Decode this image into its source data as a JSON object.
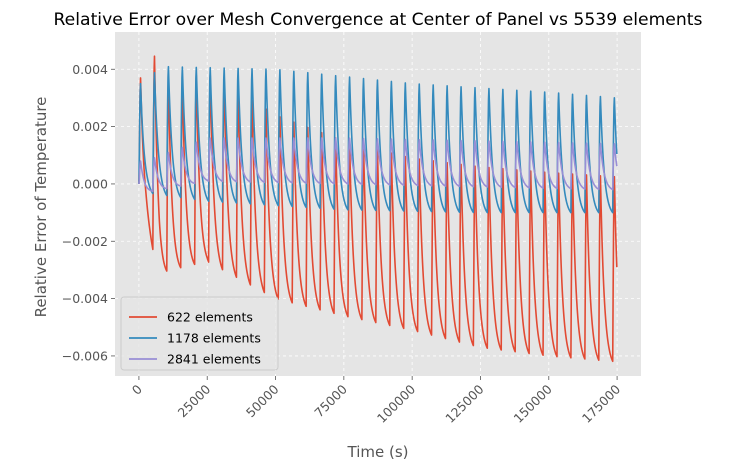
{
  "chart_data": {
    "type": "line",
    "title": "Relative Error over Mesh Convergence at Center of Panel vs 5539 elements",
    "xlabel": "Time (s)",
    "ylabel": "Relative Error of Temperature",
    "xlim": [
      -8750,
      183750
    ],
    "ylim": [
      -0.0067,
      0.0053
    ],
    "xticks": [
      0,
      25000,
      50000,
      75000,
      100000,
      125000,
      150000,
      175000
    ],
    "xtick_labels": [
      "0",
      "25000",
      "50000",
      "75000",
      "100000",
      "125000",
      "150000",
      "175000"
    ],
    "yticks": [
      -0.006,
      -0.004,
      -0.002,
      0.0,
      0.002,
      0.004
    ],
    "ytick_labels": [
      "−0.006",
      "−0.004",
      "−0.002",
      "0.000",
      "0.002",
      "0.004"
    ],
    "xtick_rotation_deg": 45,
    "grid": true,
    "legend_position": "lower-left",
    "colors": {
      "plot_background": "#e5e5e5",
      "grid": "#ffffff",
      "axis_text": "#555555",
      "title": "#000000"
    },
    "x_end": 175000,
    "series": [
      {
        "name": "622 elements",
        "color": "#e24a33",
        "cycle_period": 5100,
        "max_points": [
          [
            2500,
            0.0037
          ],
          [
            5000,
            0.0046
          ],
          [
            10000,
            0.0036
          ],
          [
            15000,
            0.0035
          ],
          [
            20000,
            0.0038
          ],
          [
            30000,
            0.0038
          ],
          [
            40000,
            0.003
          ],
          [
            50000,
            0.0024
          ],
          [
            75000,
            0.0015
          ],
          [
            100000,
            0.0009
          ],
          [
            125000,
            0.0006
          ],
          [
            150000,
            0.0004
          ],
          [
            175000,
            0.00025
          ]
        ],
        "min_points": [
          [
            2500,
            -0.0014
          ],
          [
            7500,
            -0.0031
          ],
          [
            25000,
            -0.0027
          ],
          [
            50000,
            -0.004
          ],
          [
            75000,
            -0.0046
          ],
          [
            100000,
            -0.0051
          ],
          [
            125000,
            -0.0057
          ],
          [
            150000,
            -0.006
          ],
          [
            175000,
            -0.0062
          ]
        ]
      },
      {
        "name": "1178 elements",
        "color": "#348abd",
        "cycle_period": 5100,
        "max_points": [
          [
            2500,
            0.0035
          ],
          [
            7500,
            0.0041
          ],
          [
            50000,
            0.004
          ],
          [
            100000,
            0.0035
          ],
          [
            150000,
            0.0032
          ],
          [
            175000,
            0.003
          ]
        ],
        "min_points": [
          [
            2500,
            -0.0003
          ],
          [
            25000,
            -0.0006
          ],
          [
            75000,
            -0.0009
          ],
          [
            125000,
            -0.001
          ],
          [
            175000,
            -0.001
          ]
        ]
      },
      {
        "name": "2841 elements",
        "color": "#988ed5",
        "cycle_period": 5100,
        "max_points": [
          [
            2500,
            0.0008
          ],
          [
            25000,
            0.0016
          ],
          [
            75000,
            0.0016
          ],
          [
            125000,
            0.0015
          ],
          [
            175000,
            0.0014
          ]
        ],
        "min_points": [
          [
            2500,
            -0.0003
          ],
          [
            25000,
            0.0001
          ],
          [
            75000,
            0.0
          ],
          [
            125000,
            -0.0001
          ],
          [
            175000,
            -0.0002
          ]
        ]
      }
    ]
  }
}
